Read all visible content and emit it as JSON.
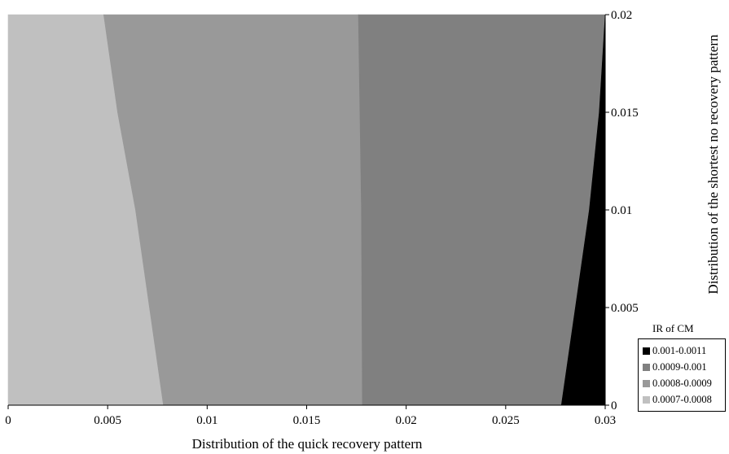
{
  "chart_data": {
    "type": "contour",
    "xlabel": "Distribution of the quick recovery pattern",
    "ylabel": "Distribution of the shortest no recovery pattern",
    "xlim": [
      0,
      0.03
    ],
    "ylim": [
      0,
      0.02
    ],
    "x_ticks": [
      "0",
      "0.005",
      "0.01",
      "0.015",
      "0.02",
      "0.025",
      "0.03"
    ],
    "y_ticks": [
      "0",
      "0.005",
      "0.01",
      "0.015",
      "0.02"
    ],
    "legend_title": "IR of CM",
    "legend_placement": "bottom-right",
    "levels": [
      {
        "label": "0.001-0.0011",
        "color": "#000000"
      },
      {
        "label": "0.0009-0.001",
        "color": "#808080"
      },
      {
        "label": "0.0008-0.0009",
        "color": "#999999"
      },
      {
        "label": "0.0007-0.0008",
        "color": "#c0c0c0"
      }
    ],
    "boundaries": [
      {
        "between": [
          "0.0007-0.0008",
          "0.0008-0.0009"
        ],
        "points": [
          [
            0.0078,
            0
          ],
          [
            0.0071,
            0.005
          ],
          [
            0.0064,
            0.01
          ],
          [
            0.0055,
            0.015
          ],
          [
            0.0048,
            0.02
          ]
        ]
      },
      {
        "between": [
          "0.0008-0.0009",
          "0.0009-0.001"
        ],
        "points": [
          [
            0.0178,
            0
          ],
          [
            0.01775,
            0.01
          ],
          [
            0.0176,
            0.02
          ]
        ]
      },
      {
        "between": [
          "0.0009-0.001",
          "0.001-0.0011"
        ],
        "points": [
          [
            0.0278,
            0
          ],
          [
            0.0285,
            0.005
          ],
          [
            0.0292,
            0.01
          ],
          [
            0.0297,
            0.015
          ],
          [
            0.03,
            0.02
          ]
        ]
      }
    ]
  }
}
